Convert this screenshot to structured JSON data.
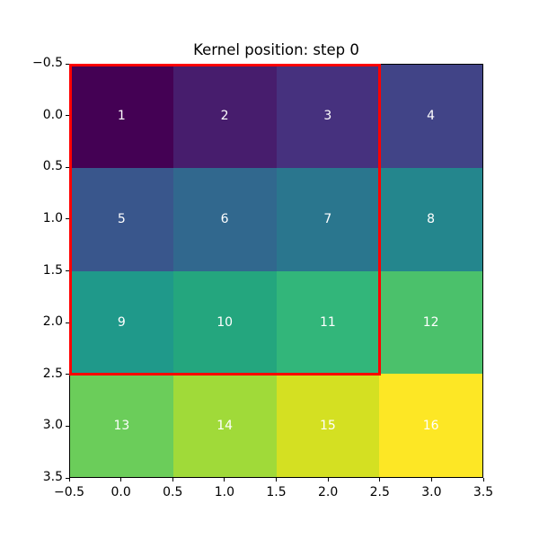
{
  "title": "Kernel position: step 0",
  "chart_data": {
    "type": "heatmap",
    "title": "Kernel position: step 0",
    "colormap": "viridis",
    "values": [
      [
        1,
        2,
        3,
        4
      ],
      [
        5,
        6,
        7,
        8
      ],
      [
        9,
        10,
        11,
        12
      ],
      [
        13,
        14,
        15,
        16
      ]
    ],
    "cell_colors": [
      [
        "#440154",
        "#471d6d",
        "#46317e",
        "#414487"
      ],
      [
        "#39568c",
        "#31688e",
        "#2a768e",
        "#24868d"
      ],
      [
        "#1f998a",
        "#24a67e",
        "#32b67a",
        "#4bc16b"
      ],
      [
        "#6bcd5a",
        "#a0da39",
        "#d4e022",
        "#fde725"
      ]
    ],
    "annotation_color": "#ffffff",
    "x_ticks": [
      "−0.5",
      "0.0",
      "0.5",
      "1.0",
      "1.5",
      "2.0",
      "2.5",
      "3.0",
      "3.5"
    ],
    "y_ticks": [
      "−0.5",
      "0.0",
      "0.5",
      "1.0",
      "1.5",
      "2.0",
      "2.5",
      "3.0",
      "3.5"
    ],
    "xlim": [
      -0.5,
      3.5
    ],
    "ylim": [
      3.5,
      -0.5
    ],
    "grid": false,
    "legend": false,
    "kernel_overlay": {
      "step": 0,
      "x_range": [
        -0.5,
        2.5
      ],
      "y_range": [
        -0.5,
        2.5
      ],
      "color": "#ff0000",
      "linewidth": 3
    }
  }
}
